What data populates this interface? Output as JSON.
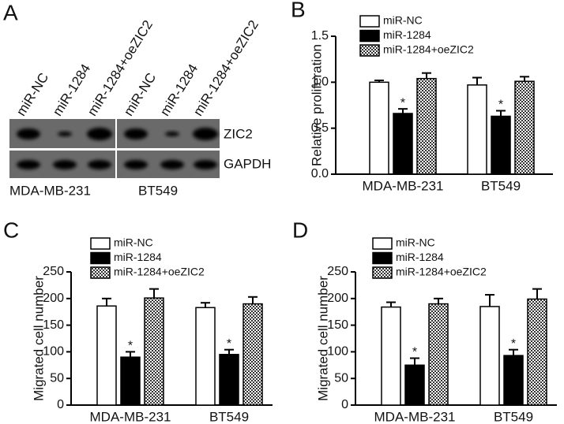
{
  "blot": {
    "panel_label": "A",
    "lanes": [
      "miR-NC",
      "miR-1284",
      "miR-1284+oeZIC2",
      "miR-NC",
      "miR-1284",
      "miR-1284+oeZIC2"
    ],
    "rows": [
      "ZIC2",
      "GAPDH"
    ],
    "groups": [
      "MDA-MB-231",
      "BT549"
    ]
  },
  "chart_data": [
    {
      "type": "bar",
      "panel_label": "B",
      "y_label": "Relative proliferation",
      "categories": [
        "MDA-MB-231",
        "BT549"
      ],
      "ylim": [
        0,
        1.5
      ],
      "yticks": [
        {
          "value": 0,
          "label": "0.0"
        },
        0.5,
        {
          "value": 1,
          "label": "1.0"
        },
        1.5
      ],
      "series": [
        {
          "name": "miR-NC",
          "color": "#ffffff",
          "values": [
            1.0,
            0.97
          ],
          "errors": [
            0.02,
            0.08
          ]
        },
        {
          "name": "miR-1284",
          "color": "#000000",
          "values": [
            0.66,
            0.63
          ],
          "errors": [
            0.05,
            0.06
          ],
          "annotations": [
            "*",
            "*"
          ]
        },
        {
          "name": "miR-1284+oeZIC2",
          "color": "checker",
          "values": [
            1.04,
            1.01
          ],
          "errors": [
            0.06,
            0.05
          ]
        }
      ]
    },
    {
      "type": "bar",
      "panel_label": "C",
      "y_label": "Migrated cell number",
      "categories": [
        "MDA-MB-231",
        "BT549"
      ],
      "ylim": [
        0,
        250
      ],
      "yticks": [
        0,
        50,
        100,
        150,
        200,
        250
      ],
      "series": [
        {
          "name": "miR-NC",
          "color": "#ffffff",
          "values": [
            186,
            183
          ],
          "errors": [
            14,
            9
          ]
        },
        {
          "name": "miR-1284",
          "color": "#000000",
          "values": [
            90,
            95
          ],
          "errors": [
            10,
            9
          ],
          "annotations": [
            "*",
            "*"
          ]
        },
        {
          "name": "miR-1284+oeZIC2",
          "color": "checker",
          "values": [
            201,
            190
          ],
          "errors": [
            17,
            13
          ]
        }
      ]
    },
    {
      "type": "bar",
      "panel_label": "D",
      "y_label": "Migrated cell number",
      "categories": [
        "MDA-MB-231",
        "BT549"
      ],
      "ylim": [
        0,
        250
      ],
      "yticks": [
        0,
        50,
        100,
        150,
        200,
        250
      ],
      "series": [
        {
          "name": "miR-NC",
          "color": "#ffffff",
          "values": [
            184,
            185
          ],
          "errors": [
            9,
            22
          ]
        },
        {
          "name": "miR-1284",
          "color": "#000000",
          "values": [
            75,
            93
          ],
          "errors": [
            13,
            11
          ],
          "annotations": [
            "*",
            "*"
          ]
        },
        {
          "name": "miR-1284+oeZIC2",
          "color": "checker",
          "values": [
            190,
            199
          ],
          "errors": [
            10,
            19
          ]
        }
      ]
    }
  ]
}
